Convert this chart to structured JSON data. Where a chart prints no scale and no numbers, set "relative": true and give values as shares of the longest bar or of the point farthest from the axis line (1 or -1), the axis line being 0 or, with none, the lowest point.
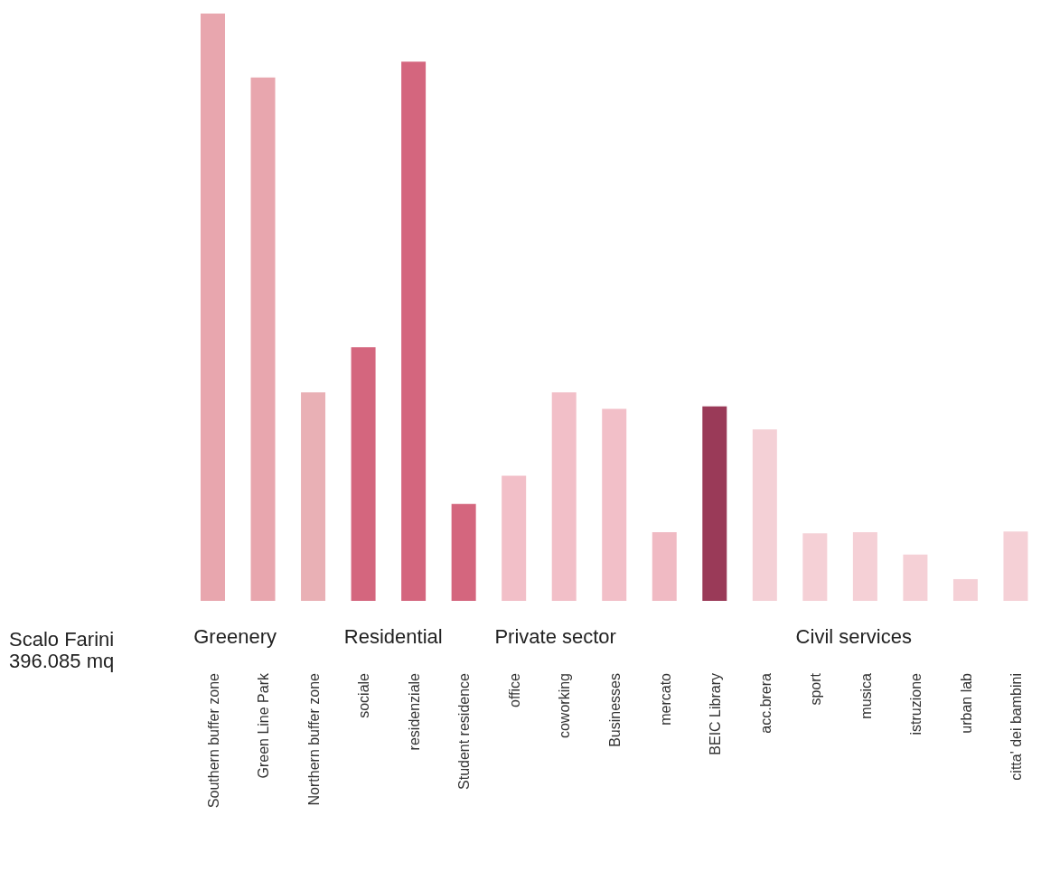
{
  "chart_data": {
    "type": "bar",
    "relative": true,
    "categories": [
      "Southern buffer zone",
      "Green Line Park",
      "Northern buffer zone",
      "sociale",
      "residenziale",
      "Student residence",
      "office",
      "coworking",
      "Businesses",
      "mercato",
      "BEIC Library",
      "acc.brera",
      "sport",
      "musica",
      "istruzione",
      "urban lab",
      "citta' dei bambini"
    ],
    "values": [
      1.0,
      0.891,
      0.355,
      0.432,
      0.918,
      0.165,
      0.213,
      0.355,
      0.327,
      0.117,
      0.331,
      0.292,
      0.115,
      0.117,
      0.079,
      0.037,
      0.118
    ],
    "colors": [
      "#e8a6ae",
      "#e8a6ae",
      "#e9b0b5",
      "#d4667e",
      "#d4667e",
      "#d4667e",
      "#f2bfc8",
      "#f2bfc8",
      "#f2bfc8",
      "#f0bac3",
      "#9a3a58",
      "#f4d0d6",
      "#f5d0d6",
      "#f5d0d6",
      "#f5d0d6",
      "#f5d0d6",
      "#f5d0d6"
    ],
    "annotations": [
      "Scalo Farini",
      "396.085 mq",
      "Greenery",
      "Residential",
      "Private sector",
      "Civil services"
    ],
    "grid": false,
    "legend": false
  }
}
